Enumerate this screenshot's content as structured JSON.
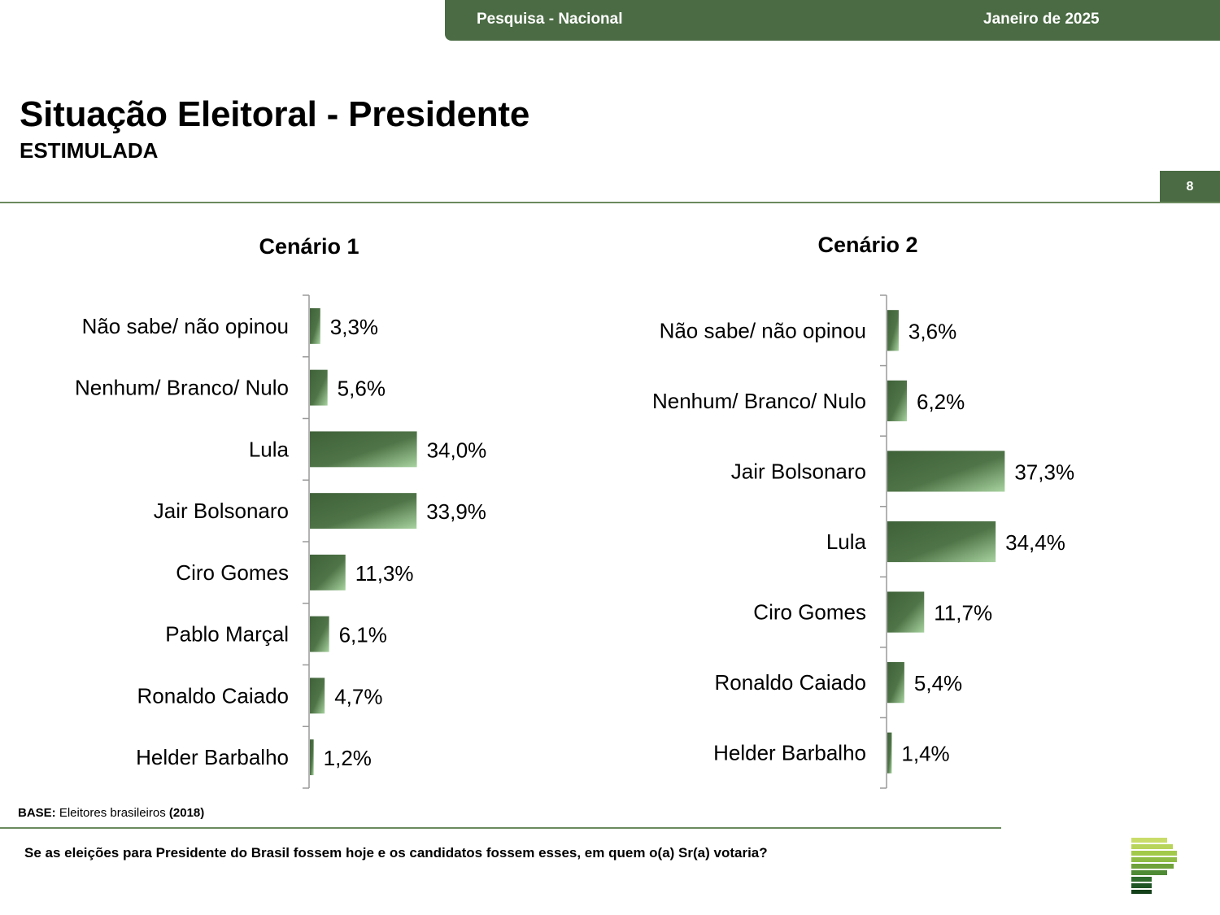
{
  "header": {
    "survey_label": "Pesquisa - Nacional",
    "date_label": "Janeiro de 2025",
    "page_number": "8"
  },
  "page": {
    "title": "Situação Eleitoral - Presidente",
    "subtitle": "ESTIMULADA"
  },
  "footer": {
    "base_label": "BASE:",
    "base_text": "Eleitores brasileiros",
    "base_year": "(2018)",
    "question": "Se as eleições para Presidente do Brasil fossem hoje e os candidatos fossem esses, em quem o(a) Sr(a) votaria?"
  },
  "colors": {
    "brand_green": "#4a6b43",
    "bar_dark": "#3f6139",
    "bar_light": "#a8d3a0"
  },
  "logo_icon": "striped-p-logo-icon",
  "chart_data": [
    {
      "type": "bar",
      "orientation": "horizontal",
      "title": "Cenário 1",
      "categories": [
        "Não sabe/ não opinou",
        "Nenhum/ Branco/ Nulo",
        "Lula",
        "Jair Bolsonaro",
        "Ciro Gomes",
        "Pablo Marçal",
        "Ronaldo Caiado",
        "Helder Barbalho"
      ],
      "values": [
        3.3,
        5.6,
        34.0,
        33.9,
        11.3,
        6.1,
        4.7,
        1.2
      ],
      "value_labels": [
        "3,3%",
        "5,6%",
        "34,0%",
        "33,9%",
        "11,3%",
        "6,1%",
        "4,7%",
        "1,2%"
      ],
      "unit": "%",
      "grid": false,
      "legend": "none"
    },
    {
      "type": "bar",
      "orientation": "horizontal",
      "title": "Cenário 2",
      "categories": [
        "Não sabe/ não opinou",
        "Nenhum/ Branco/ Nulo",
        "Jair Bolsonaro",
        "Lula",
        "Ciro Gomes",
        "Ronaldo Caiado",
        "Helder Barbalho"
      ],
      "values": [
        3.6,
        6.2,
        37.3,
        34.4,
        11.7,
        5.4,
        1.4
      ],
      "value_labels": [
        "3,6%",
        "6,2%",
        "37,3%",
        "34,4%",
        "11,7%",
        "5,4%",
        "1,4%"
      ],
      "unit": "%",
      "grid": false,
      "legend": "none"
    }
  ]
}
